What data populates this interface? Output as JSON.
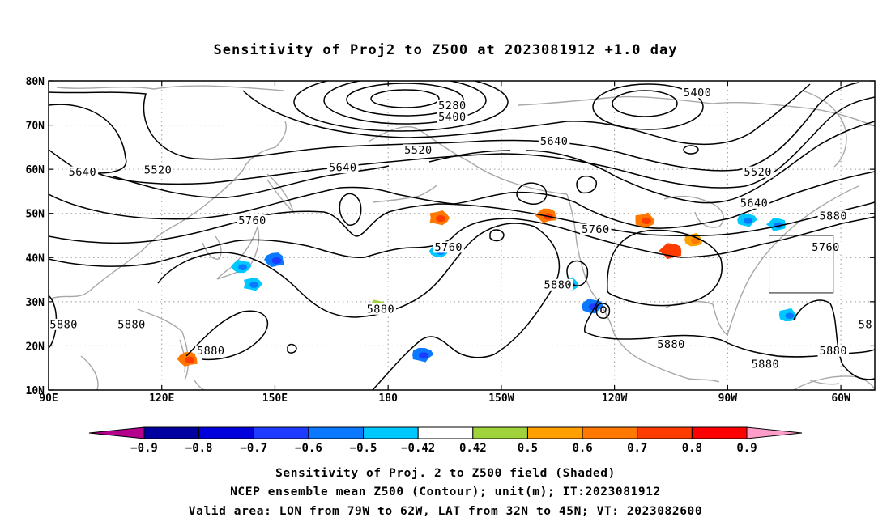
{
  "chart_data": {
    "type": "contour-map",
    "title": "Sensitivity of Proj2 to Z500 at 2023081912 +1.0 day",
    "x_tick_labels": [
      "90E",
      "120E",
      "150E",
      "180",
      "150W",
      "120W",
      "90W",
      "60W"
    ],
    "y_tick_labels": [
      "80N",
      "70N",
      "60N",
      "50N",
      "40N",
      "30N",
      "20N",
      "10N"
    ],
    "lon_range_east": [
      90,
      309
    ],
    "lat_range": [
      10,
      80
    ],
    "grid": true,
    "contour_interval_m": 120,
    "contour_labels": [
      {
        "text": "5400",
        "lon": 197,
        "lat": 71.5
      },
      {
        "text": "5280",
        "lon": 197,
        "lat": 74
      },
      {
        "text": "5400",
        "lon": 262,
        "lat": 77
      },
      {
        "text": "5640",
        "lon": 99,
        "lat": 59
      },
      {
        "text": "5520",
        "lon": 119,
        "lat": 59.5
      },
      {
        "text": "5640",
        "lon": 168,
        "lat": 60
      },
      {
        "text": "5520",
        "lon": 188,
        "lat": 64
      },
      {
        "text": "5640",
        "lon": 224,
        "lat": 66
      },
      {
        "text": "5520",
        "lon": 278,
        "lat": 59
      },
      {
        "text": "5640",
        "lon": 277,
        "lat": 52
      },
      {
        "text": "5760",
        "lon": 144,
        "lat": 48
      },
      {
        "text": "5760",
        "lon": 196,
        "lat": 42
      },
      {
        "text": "5760",
        "lon": 235,
        "lat": 46
      },
      {
        "text": "5880",
        "lon": 298,
        "lat": 49
      },
      {
        "text": "5760",
        "lon": 296,
        "lat": 42
      },
      {
        "text": "5880",
        "lon": 225,
        "lat": 33.5
      },
      {
        "text": "5880",
        "lon": 178,
        "lat": 28
      },
      {
        "text": "5880",
        "lon": 94,
        "lat": 24.5
      },
      {
        "text": "5880",
        "lon": 112,
        "lat": 24.5
      },
      {
        "text": "5880",
        "lon": 133,
        "lat": 18.5
      },
      {
        "text": "5880",
        "lon": 255,
        "lat": 20
      },
      {
        "text": "5880",
        "lon": 280,
        "lat": 15.5
      },
      {
        "text": "5880",
        "lon": 298,
        "lat": 18.5
      },
      {
        "text": "58",
        "lon": 306.5,
        "lat": 24.5
      }
    ],
    "valid_box": {
      "lon": [
        281,
        298
      ],
      "lat": [
        32,
        45
      ]
    },
    "colorbar": {
      "labels": [
        "-0.9",
        "-0.8",
        "-0.7",
        "-0.6",
        "-0.5",
        "-0.42",
        "0.42",
        "0.5",
        "0.6",
        "0.7",
        "0.8",
        "0.9"
      ],
      "colors": [
        "#b4008c",
        "#0000a0",
        "#0000dc",
        "#1e3cff",
        "#0a78ff",
        "#00c8ff",
        "#ffffff",
        "#a0d23c",
        "#ffa000",
        "#ff7800",
        "#ff3c00",
        "#ff0000",
        "#ff9cc8"
      ]
    },
    "shaded_regions": [
      {
        "lon": 150,
        "lat": 39.5,
        "value": -0.6
      },
      {
        "lon": 144,
        "lat": 34,
        "value": -0.5
      },
      {
        "lon": 141,
        "lat": 38,
        "value": -0.5
      },
      {
        "lon": 127,
        "lat": 17,
        "value": 0.6
      },
      {
        "lon": 193.5,
        "lat": 49,
        "value": 0.6
      },
      {
        "lon": 193.5,
        "lat": 41.5,
        "value": -0.5
      },
      {
        "lon": 222,
        "lat": 49.5,
        "value": 0.6
      },
      {
        "lon": 228,
        "lat": 34,
        "value": -0.5
      },
      {
        "lon": 234,
        "lat": 29,
        "value": -0.6
      },
      {
        "lon": 255,
        "lat": 41.5,
        "value": 0.7
      },
      {
        "lon": 248,
        "lat": 48.5,
        "value": 0.6
      },
      {
        "lon": 275,
        "lat": 48.5,
        "value": -0.5
      },
      {
        "lon": 283,
        "lat": 47.5,
        "value": -0.5
      },
      {
        "lon": 286,
        "lat": 27,
        "value": -0.5
      },
      {
        "lon": 189,
        "lat": 18,
        "value": -0.6
      },
      {
        "lon": 177,
        "lat": 29,
        "value": 0.42
      },
      {
        "lon": 261,
        "lat": 44,
        "value": 0.5
      }
    ]
  },
  "footer": {
    "line1": "Sensitivity of Proj. 2 to Z500 field (Shaded)",
    "line2": "NCEP ensemble mean Z500 (Contour); unit(m); IT:2023081912",
    "line3": "Valid area: LON from 79W to 62W, LAT from 32N to 45N; VT: 2023082600"
  }
}
